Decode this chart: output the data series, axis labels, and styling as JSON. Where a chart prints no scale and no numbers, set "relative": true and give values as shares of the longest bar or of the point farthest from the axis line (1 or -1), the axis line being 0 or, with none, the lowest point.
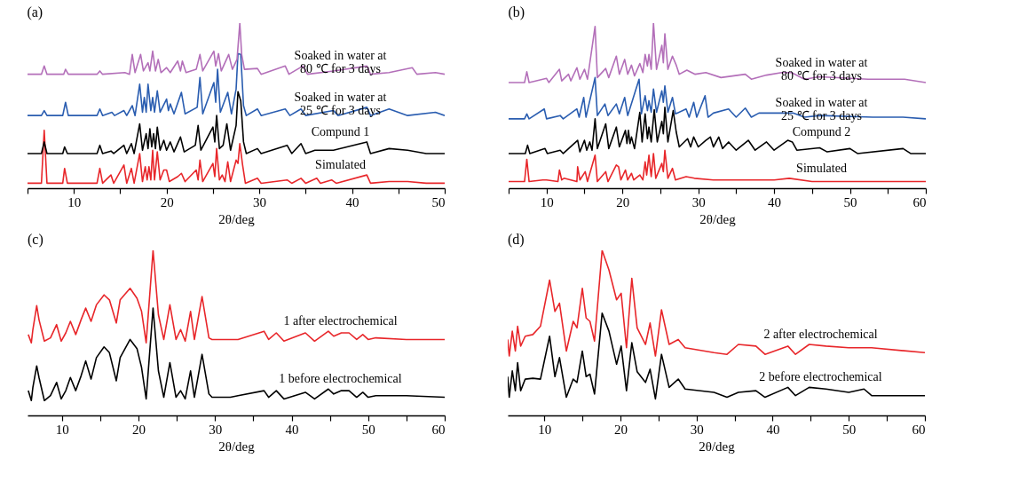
{
  "chart_data": [
    {
      "type": "line",
      "title": "(a)",
      "xlabel": "2θ/deg",
      "relative": true,
      "xlim": [
        5,
        50
      ],
      "xticks": [
        {
          "value": 5,
          "label": null
        },
        10,
        {
          "value": 15,
          "label": null
        },
        20,
        {
          "value": 25,
          "label": null
        },
        30,
        {
          "value": 35,
          "label": null
        },
        40,
        {
          "value": 45,
          "label": null
        },
        50
      ],
      "series": [
        {
          "name": "Simulated",
          "color": "#e8262a",
          "x": [
            5,
            6.5,
            6.8,
            7.1,
            8.8,
            9.0,
            9.3,
            12.5,
            12.8,
            13.1,
            14.0,
            14.3,
            15.4,
            15.7,
            16.2,
            16.5,
            17.1,
            17.4,
            17.7,
            17.9,
            18.1,
            18.3,
            18.5,
            18.7,
            19.0,
            19.3,
            19.7,
            20.0,
            20.3,
            21.2,
            21.6,
            22.0,
            23.2,
            23.4,
            23.6,
            23.9,
            25.0,
            25.2,
            25.4,
            25.7,
            26.0,
            26.3,
            26.6,
            26.9,
            27.5,
            27.7,
            27.9,
            28.2,
            28.5,
            29.8,
            30.2,
            33,
            33.5,
            34.5,
            35,
            36.2,
            36.6,
            37.8,
            38.3,
            41.6,
            42,
            44,
            46,
            48,
            50
          ],
          "values": [
            0.03,
            0.03,
            0.35,
            0.03,
            0.03,
            0.12,
            0.03,
            0.03,
            0.12,
            0.03,
            0.08,
            0.03,
            0.14,
            0.03,
            0.12,
            0.03,
            0.21,
            0.04,
            0.13,
            0.05,
            0.13,
            0.05,
            0.23,
            0.05,
            0.22,
            0.05,
            0.11,
            0.11,
            0.04,
            0.07,
            0.09,
            0.04,
            0.11,
            0.05,
            0.17,
            0.04,
            0.15,
            0.07,
            0.24,
            0.05,
            0.08,
            0.04,
            0.16,
            0.04,
            0.17,
            0.15,
            0.27,
            0.14,
            0.03,
            0.06,
            0.03,
            0.05,
            0.03,
            0.06,
            0.03,
            0.06,
            0.03,
            0.05,
            0.03,
            0.08,
            0.03,
            0.04,
            0.04,
            0.03,
            0.03
          ]
        },
        {
          "name": "Compund 1",
          "color": "#000000",
          "x": [
            5,
            6.5,
            6.8,
            7.1,
            8.8,
            9.0,
            9.3,
            12.5,
            12.8,
            13.1,
            14.0,
            14.3,
            15.4,
            15.7,
            16.2,
            16.5,
            17.1,
            17.4,
            17.8,
            18.0,
            18.2,
            18.4,
            18.6,
            18.8,
            19.0,
            19.3,
            19.7,
            20.0,
            20.4,
            20.8,
            21.5,
            21.9,
            23.1,
            23.4,
            23.7,
            25.0,
            25.2,
            25.4,
            25.7,
            26.1,
            26.5,
            26.9,
            27.5,
            27.7,
            28.0,
            28.3,
            28.6,
            29.8,
            30.2,
            33,
            33.5,
            34.5,
            35,
            36,
            38,
            41.6,
            42,
            44,
            46,
            48,
            50
          ],
          "values": [
            0.21,
            0.21,
            0.28,
            0.21,
            0.21,
            0.25,
            0.21,
            0.21,
            0.26,
            0.21,
            0.225,
            0.21,
            0.26,
            0.21,
            0.27,
            0.21,
            0.39,
            0.23,
            0.33,
            0.24,
            0.36,
            0.25,
            0.33,
            0.24,
            0.37,
            0.23,
            0.29,
            0.23,
            0.28,
            0.22,
            0.31,
            0.22,
            0.26,
            0.38,
            0.23,
            0.37,
            0.28,
            0.44,
            0.24,
            0.26,
            0.39,
            0.23,
            0.38,
            0.585,
            0.53,
            0.28,
            0.21,
            0.24,
            0.21,
            0.26,
            0.21,
            0.27,
            0.21,
            0.23,
            0.23,
            0.28,
            0.21,
            0.24,
            0.23,
            0.21,
            0.21
          ]
        },
        {
          "name": "Soaked in water at\n25 ℃ for 3 days",
          "color": "#2a5db0",
          "x": [
            5,
            6.5,
            6.8,
            7.1,
            8.8,
            9.1,
            9.4,
            12.5,
            12.8,
            13.1,
            14.1,
            14.4,
            15.4,
            15.7,
            16.3,
            16.6,
            17.1,
            17.4,
            17.6,
            17.8,
            18.0,
            18.3,
            18.5,
            18.7,
            19.0,
            19.3,
            20.0,
            20.2,
            20.4,
            20.8,
            21.6,
            22.0,
            23.3,
            23.6,
            23.9,
            25.1,
            25.3,
            25.5,
            25.8,
            26.6,
            27.0,
            27.5,
            27.7,
            28.0,
            28.3,
            28.6,
            29.8,
            30.2,
            32.8,
            33.3,
            34.5,
            35,
            38,
            38.5,
            41.6,
            42,
            44,
            46,
            49,
            50
          ],
          "values": [
            0.44,
            0.44,
            0.47,
            0.44,
            0.44,
            0.52,
            0.44,
            0.44,
            0.48,
            0.44,
            0.46,
            0.44,
            0.47,
            0.44,
            0.5,
            0.44,
            0.63,
            0.46,
            0.55,
            0.46,
            0.63,
            0.47,
            0.55,
            0.46,
            0.59,
            0.46,
            0.54,
            0.47,
            0.51,
            0.45,
            0.58,
            0.45,
            0.49,
            0.67,
            0.45,
            0.64,
            0.52,
            0.72,
            0.46,
            0.58,
            0.45,
            0.6,
            0.815,
            0.81,
            0.5,
            0.44,
            0.48,
            0.44,
            0.48,
            0.44,
            0.48,
            0.44,
            0.47,
            0.44,
            0.49,
            0.44,
            0.48,
            0.44,
            0.46,
            0.44
          ]
        },
        {
          "name": "Soaked in water at\n80 ℃ for 3 days",
          "color": "#b36fb9",
          "x": [
            5,
            6.5,
            6.8,
            7.1,
            8.9,
            9.1,
            9.4,
            12.5,
            12.8,
            13.1,
            15.5,
            16.0,
            16.3,
            16.6,
            17.2,
            17.5,
            18.0,
            18.2,
            18.5,
            18.8,
            19.1,
            19.4,
            20.0,
            20.4,
            21.2,
            21.5,
            21.7,
            22.1,
            23.2,
            23.6,
            23.9,
            25.1,
            25.3,
            25.6,
            25.9,
            26.7,
            27.1,
            27.6,
            27.9,
            28.1,
            28.4,
            29.8,
            30.2,
            32.8,
            33.2,
            34.7,
            35.2,
            38,
            41.6,
            42,
            44,
            46.5,
            47,
            49,
            50
          ],
          "values": [
            0.69,
            0.69,
            0.74,
            0.69,
            0.69,
            0.72,
            0.69,
            0.69,
            0.71,
            0.69,
            0.7,
            0.69,
            0.81,
            0.7,
            0.81,
            0.71,
            0.76,
            0.71,
            0.83,
            0.71,
            0.78,
            0.7,
            0.73,
            0.7,
            0.77,
            0.71,
            0.77,
            0.7,
            0.72,
            0.81,
            0.71,
            0.83,
            0.74,
            0.815,
            0.71,
            0.81,
            0.72,
            0.78,
            1.0,
            0.81,
            0.72,
            0.725,
            0.69,
            0.74,
            0.69,
            0.74,
            0.69,
            0.71,
            0.74,
            0.69,
            0.7,
            0.73,
            0.69,
            0.7,
            0.69
          ]
        }
      ]
    },
    {
      "type": "line",
      "title": "(b)",
      "xlabel": "2θ/deg",
      "relative": true,
      "xlim": [
        5,
        60
      ],
      "xticks": [
        {
          "value": 5,
          "label": null
        },
        10,
        {
          "value": 15,
          "label": null
        },
        20,
        {
          "value": 25,
          "label": null
        },
        30,
        {
          "value": 35,
          "label": null
        },
        40,
        {
          "value": 45,
          "label": null
        },
        50,
        {
          "value": 55,
          "label": null
        },
        60
      ],
      "series": [
        {
          "name": "Simulated",
          "color": "#e8262a",
          "x": [
            5,
            7.1,
            7.4,
            7.7,
            9.5,
            10,
            11.5,
            11.7,
            12.0,
            12.3,
            14.0,
            14.1,
            14.4,
            15.1,
            15.4,
            16.4,
            16.7,
            17.8,
            18.1,
            19.2,
            19.5,
            19.8,
            20.4,
            20.7,
            21.2,
            21.5,
            22.3,
            22.7,
            23.0,
            23.2,
            23.5,
            23.8,
            24.1,
            24.4,
            25.2,
            25.4,
            25.6,
            26.0,
            26.6,
            27.0,
            28.4,
            29.5,
            32,
            36,
            40,
            42,
            45,
            50,
            60
          ],
          "values": [
            0.04,
            0.04,
            0.175,
            0.04,
            0.05,
            0.05,
            0.04,
            0.11,
            0.05,
            0.06,
            0.04,
            0.13,
            0.05,
            0.1,
            0.04,
            0.2,
            0.04,
            0.1,
            0.04,
            0.14,
            0.13,
            0.05,
            0.11,
            0.05,
            0.09,
            0.05,
            0.08,
            0.05,
            0.16,
            0.08,
            0.2,
            0.07,
            0.21,
            0.06,
            0.15,
            0.1,
            0.23,
            0.06,
            0.12,
            0.05,
            0.07,
            0.06,
            0.05,
            0.05,
            0.05,
            0.06,
            0.04,
            0.04,
            0.04
          ]
        },
        {
          "name": "Compund 2",
          "color": "#000000",
          "x": [
            5,
            7.2,
            7.5,
            7.8,
            9.8,
            10.1,
            11.8,
            12.2,
            14.1,
            14.4,
            15.0,
            15.3,
            15.7,
            16.0,
            16.4,
            16.7,
            17.8,
            18.2,
            19.2,
            19.6,
            20.4,
            20.6,
            20.8,
            21.0,
            21.2,
            21.6,
            22.3,
            22.6,
            23.0,
            23.3,
            23.5,
            23.8,
            24.2,
            24.6,
            25.2,
            25.4,
            25.6,
            26.0,
            26.7,
            27.1,
            27.5,
            28.6,
            29.0,
            29.4,
            30,
            31,
            31.6,
            32,
            32.7,
            33.2,
            34,
            35,
            36.6,
            37.5,
            39,
            40,
            41.8,
            42.4,
            43,
            46,
            47,
            50,
            51,
            57,
            58,
            60
          ],
          "values": [
            0.21,
            0.21,
            0.26,
            0.21,
            0.24,
            0.21,
            0.23,
            0.21,
            0.29,
            0.22,
            0.29,
            0.23,
            0.28,
            0.23,
            0.42,
            0.24,
            0.39,
            0.24,
            0.37,
            0.25,
            0.35,
            0.27,
            0.35,
            0.27,
            0.31,
            0.24,
            0.46,
            0.28,
            0.45,
            0.3,
            0.37,
            0.28,
            0.475,
            0.28,
            0.405,
            0.33,
            0.49,
            0.28,
            0.47,
            0.34,
            0.25,
            0.3,
            0.25,
            0.31,
            0.25,
            0.29,
            0.31,
            0.25,
            0.31,
            0.24,
            0.28,
            0.23,
            0.29,
            0.23,
            0.28,
            0.23,
            0.29,
            0.28,
            0.23,
            0.245,
            0.22,
            0.24,
            0.21,
            0.24,
            0.21,
            0.21
          ]
        },
        {
          "name": "Soaked in water at\n25 ℃ for 3 days",
          "color": "#2a5db0",
          "x": [
            5,
            7.1,
            7.4,
            7.7,
            9.7,
            10.0,
            11.8,
            12.2,
            14.0,
            14.3,
            14.9,
            15.2,
            16.4,
            16.7,
            17.7,
            18.1,
            19.2,
            19.6,
            20.3,
            20.7,
            22.2,
            22.5,
            23.0,
            23.3,
            23.5,
            23.8,
            24.1,
            24.5,
            25.2,
            25.4,
            25.6,
            26.0,
            26.6,
            27.0,
            28.4,
            28.8,
            29.4,
            29.8,
            30.9,
            31.3,
            32,
            34,
            35,
            36.2,
            37,
            38,
            40.9,
            42.5,
            44,
            46,
            53,
            57,
            60
          ],
          "values": [
            0.42,
            0.42,
            0.45,
            0.42,
            0.48,
            0.42,
            0.44,
            0.42,
            0.48,
            0.43,
            0.55,
            0.43,
            0.67,
            0.44,
            0.51,
            0.44,
            0.51,
            0.45,
            0.55,
            0.44,
            0.66,
            0.45,
            0.56,
            0.47,
            0.53,
            0.46,
            0.6,
            0.46,
            0.59,
            0.52,
            0.62,
            0.46,
            0.55,
            0.45,
            0.48,
            0.43,
            0.52,
            0.43,
            0.56,
            0.43,
            0.455,
            0.48,
            0.43,
            0.485,
            0.43,
            0.455,
            0.455,
            0.455,
            0.43,
            0.44,
            0.43,
            0.43,
            0.42
          ]
        },
        {
          "name": "Soaked in water at\n80 ℃ for 3 days",
          "color": "#b36fb9",
          "x": [
            5,
            7.1,
            7.4,
            7.7,
            10.0,
            10.3,
            11.7,
            12.0,
            12.9,
            13.2,
            14.0,
            14.4,
            15.0,
            15.4,
            16.4,
            16.7,
            17.8,
            18.2,
            19.2,
            19.6,
            20.3,
            20.7,
            21.2,
            21.6,
            22.3,
            22.7,
            23.0,
            23.3,
            23.5,
            23.8,
            24.1,
            24.5,
            25.2,
            25.4,
            25.6,
            26.0,
            26.6,
            27.1,
            27.5,
            28.5,
            29.6,
            31,
            33,
            36.2,
            37,
            39,
            41,
            42.3,
            44,
            46,
            52.4,
            57.2,
            60
          ],
          "values": [
            0.64,
            0.64,
            0.705,
            0.64,
            0.665,
            0.64,
            0.72,
            0.65,
            0.69,
            0.65,
            0.73,
            0.66,
            0.72,
            0.66,
            0.98,
            0.67,
            0.725,
            0.67,
            0.8,
            0.69,
            0.78,
            0.69,
            0.745,
            0.68,
            0.755,
            0.7,
            0.81,
            0.74,
            0.81,
            0.72,
            1.0,
            0.72,
            0.865,
            0.76,
            0.935,
            0.72,
            0.8,
            0.745,
            0.69,
            0.715,
            0.69,
            0.7,
            0.67,
            0.69,
            0.66,
            0.685,
            0.7,
            0.7,
            0.66,
            0.675,
            0.66,
            0.66,
            0.64
          ]
        }
      ]
    },
    {
      "type": "line",
      "title": "(c)",
      "xlabel": "2θ/deg",
      "relative": true,
      "xlim": [
        5.5,
        60
      ],
      "xticks": [
        10,
        {
          "value": 15,
          "label": null
        },
        20,
        {
          "value": 25,
          "label": null
        },
        30,
        {
          "value": 35,
          "label": null
        },
        40,
        {
          "value": 45,
          "label": null
        },
        50,
        {
          "value": 55,
          "label": null
        },
        60
      ],
      "series": [
        {
          "name": "1 before electrochemical",
          "color": "#000000",
          "x": [
            5.6,
            6.0,
            6.2,
            6.7,
            7.0,
            7.7,
            8.5,
            9.3,
            9.9,
            10.5,
            11.1,
            11.8,
            12.5,
            13.1,
            13.8,
            14.5,
            15.5,
            16.2,
            17.1,
            17.6,
            18.9,
            19.8,
            20.4,
            21.0,
            21.9,
            22.6,
            23.3,
            24.1,
            24.9,
            25.5,
            26.1,
            26.8,
            27.3,
            28.3,
            29.2,
            29.6,
            32,
            33,
            36.4,
            37,
            38,
            39,
            41.8,
            43,
            44.8,
            45.5,
            46.5,
            47.5,
            48.5,
            49.3,
            50,
            51,
            55,
            60
          ],
          "values": [
            0.15,
            0.09,
            0.17,
            0.3,
            0.23,
            0.09,
            0.12,
            0.2,
            0.1,
            0.15,
            0.23,
            0.15,
            0.24,
            0.33,
            0.22,
            0.35,
            0.415,
            0.38,
            0.21,
            0.35,
            0.46,
            0.405,
            0.29,
            0.1,
            0.65,
            0.27,
            0.11,
            0.32,
            0.11,
            0.15,
            0.1,
            0.27,
            0.11,
            0.37,
            0.13,
            0.11,
            0.11,
            0.12,
            0.15,
            0.11,
            0.15,
            0.1,
            0.14,
            0.1,
            0.16,
            0.13,
            0.15,
            0.15,
            0.11,
            0.14,
            0.11,
            0.12,
            0.12,
            0.11
          ]
        },
        {
          "name": "1 after electrochemical",
          "color": "#e8262a",
          "x": [
            5.6,
            6.0,
            6.2,
            6.7,
            7.0,
            7.7,
            8.5,
            9.3,
            9.9,
            10.5,
            11.1,
            11.8,
            12.5,
            13.1,
            13.8,
            14.5,
            15.5,
            16.2,
            17.1,
            17.6,
            18.9,
            19.8,
            20.4,
            21.0,
            21.9,
            22.6,
            23.3,
            24.1,
            24.9,
            25.5,
            26.1,
            26.8,
            27.3,
            28.3,
            29.2,
            29.6,
            32,
            33,
            36.4,
            37,
            38,
            39,
            41.8,
            43,
            44.8,
            45.5,
            46.5,
            47.5,
            48.5,
            49.3,
            50,
            51,
            55,
            60
          ],
          "values": [
            0.49,
            0.44,
            0.52,
            0.665,
            0.58,
            0.45,
            0.47,
            0.55,
            0.45,
            0.5,
            0.57,
            0.49,
            0.58,
            0.65,
            0.57,
            0.67,
            0.73,
            0.7,
            0.56,
            0.7,
            0.77,
            0.71,
            0.63,
            0.44,
            1.0,
            0.61,
            0.46,
            0.67,
            0.46,
            0.52,
            0.45,
            0.63,
            0.46,
            0.72,
            0.47,
            0.46,
            0.46,
            0.46,
            0.51,
            0.46,
            0.5,
            0.45,
            0.5,
            0.45,
            0.51,
            0.48,
            0.5,
            0.5,
            0.46,
            0.49,
            0.46,
            0.47,
            0.46,
            0.46
          ]
        }
      ]
    },
    {
      "type": "line",
      "title": "(d)",
      "xlabel": "2θ/deg",
      "relative": true,
      "xlim": [
        5.2,
        60
      ],
      "xticks": [
        10,
        {
          "value": 15,
          "label": null
        },
        20,
        {
          "value": 25,
          "label": null
        },
        30,
        {
          "value": 35,
          "label": null
        },
        40,
        {
          "value": 45,
          "label": null
        },
        50,
        {
          "value": 55,
          "label": null
        },
        60
      ],
      "series": [
        {
          "name": "2 before electrochemical",
          "color": "#000000",
          "x": [
            5.2,
            5.4,
            5.8,
            6.2,
            6.5,
            6.9,
            7.5,
            8.5,
            9.5,
            10.7,
            11.4,
            12.0,
            12.9,
            13.8,
            14.3,
            15.0,
            15.5,
            16.0,
            16.6,
            17.6,
            18.5,
            19.5,
            20.1,
            20.8,
            21.5,
            22.2,
            23.3,
            23.9,
            24.6,
            25.4,
            26.4,
            27.6,
            28.5,
            32.3,
            34,
            35.5,
            37.8,
            39,
            42,
            43,
            44.8,
            47,
            50,
            52,
            53,
            60
          ],
          "values": [
            0.235,
            0.11,
            0.27,
            0.15,
            0.32,
            0.15,
            0.22,
            0.225,
            0.22,
            0.48,
            0.235,
            0.35,
            0.11,
            0.22,
            0.2,
            0.39,
            0.235,
            0.25,
            0.13,
            0.62,
            0.51,
            0.31,
            0.42,
            0.15,
            0.44,
            0.265,
            0.2,
            0.28,
            0.1,
            0.37,
            0.17,
            0.22,
            0.16,
            0.14,
            0.11,
            0.14,
            0.15,
            0.11,
            0.17,
            0.12,
            0.17,
            0.16,
            0.14,
            0.16,
            0.12,
            0.12
          ]
        },
        {
          "name": "2 after electrochemical",
          "color": "#e8262a",
          "x": [
            5.2,
            5.4,
            5.8,
            6.2,
            6.5,
            6.9,
            7.5,
            8.5,
            9.5,
            10.7,
            11.4,
            12.0,
            12.9,
            13.8,
            14.3,
            15.0,
            15.5,
            16.0,
            16.6,
            17.6,
            18.5,
            19.5,
            20.1,
            20.8,
            21.5,
            22.2,
            23.3,
            23.9,
            24.6,
            25.4,
            26.4,
            27.6,
            28.5,
            32.3,
            34,
            35.5,
            37.8,
            39,
            42,
            43,
            44.8,
            47,
            50,
            53,
            60
          ],
          "values": [
            0.46,
            0.36,
            0.51,
            0.39,
            0.54,
            0.42,
            0.48,
            0.49,
            0.54,
            0.82,
            0.63,
            0.68,
            0.39,
            0.57,
            0.53,
            0.77,
            0.59,
            0.57,
            0.45,
            1.0,
            0.88,
            0.7,
            0.74,
            0.41,
            0.83,
            0.53,
            0.43,
            0.56,
            0.36,
            0.64,
            0.43,
            0.46,
            0.41,
            0.38,
            0.37,
            0.43,
            0.42,
            0.37,
            0.42,
            0.37,
            0.43,
            0.42,
            0.41,
            0.41,
            0.38
          ]
        }
      ]
    }
  ]
}
